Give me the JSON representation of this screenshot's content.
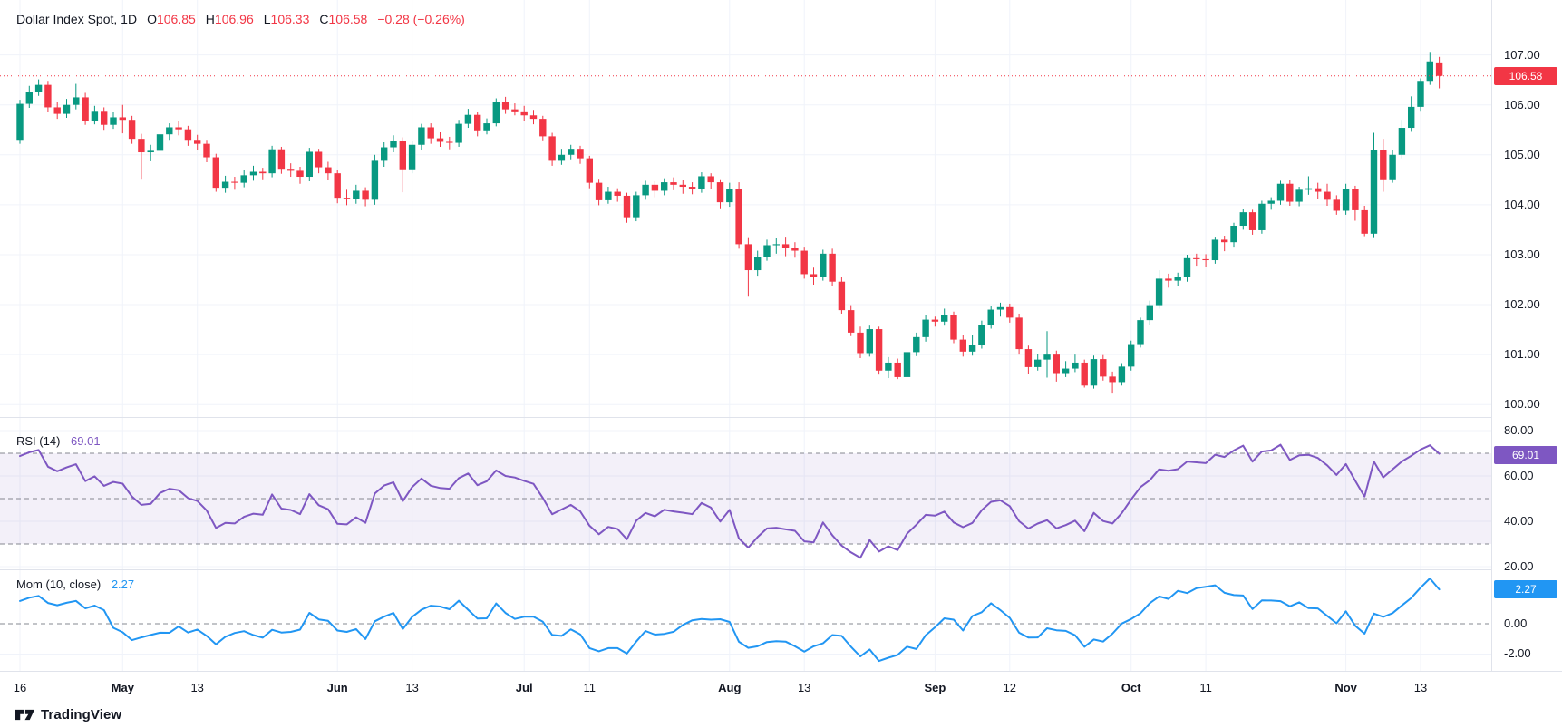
{
  "title": {
    "symbol": "Dollar Index Spot, 1D",
    "ohlc": [
      {
        "k": "O",
        "v": "106.85"
      },
      {
        "k": "H",
        "v": "106.96"
      },
      {
        "k": "L",
        "v": "106.33"
      },
      {
        "k": "C",
        "v": "106.58"
      }
    ],
    "change": "−0.28 (−0.26%)"
  },
  "footer": {
    "brand": "TradingView"
  },
  "colors": {
    "up": "#089981",
    "down": "#f23645",
    "grid": "#f0f3fa",
    "dashed": "#72747e",
    "separator": "#e0e3eb",
    "rsi_line": "#7e57c2",
    "rsi_band": "rgba(126,87,194,0.09)",
    "mom_line": "#2196f3",
    "last_price_line": "#f23645",
    "text": "#131722"
  },
  "chart_data": {
    "type": "candlestick",
    "symbol": "Dollar Index Spot",
    "interval": "1D",
    "legend_position": "top-left",
    "grid": true,
    "candles": [
      [
        105.3,
        106.1,
        105.22,
        106.02
      ],
      [
        106.02,
        106.38,
        105.94,
        106.26
      ],
      [
        106.26,
        106.51,
        106.18,
        106.4
      ],
      [
        106.4,
        106.48,
        105.86,
        105.95
      ],
      [
        105.95,
        106.06,
        105.72,
        105.82
      ],
      [
        105.82,
        106.12,
        105.74,
        106.0
      ],
      [
        106.0,
        106.42,
        105.91,
        106.15
      ],
      [
        106.15,
        106.24,
        105.6,
        105.68
      ],
      [
        105.68,
        105.98,
        105.61,
        105.88
      ],
      [
        105.88,
        105.95,
        105.5,
        105.6
      ],
      [
        105.6,
        105.86,
        105.52,
        105.75
      ],
      [
        105.75,
        106.0,
        105.43,
        105.7
      ],
      [
        105.7,
        105.78,
        105.22,
        105.32
      ],
      [
        105.32,
        105.42,
        104.52,
        105.05
      ],
      [
        105.05,
        105.2,
        104.87,
        105.08
      ],
      [
        105.08,
        105.5,
        104.97,
        105.41
      ],
      [
        105.41,
        105.63,
        105.3,
        105.55
      ],
      [
        105.55,
        105.68,
        105.39,
        105.51
      ],
      [
        105.51,
        105.58,
        105.18,
        105.3
      ],
      [
        105.3,
        105.4,
        105.1,
        105.22
      ],
      [
        105.22,
        105.3,
        104.85,
        104.95
      ],
      [
        104.95,
        105.02,
        104.26,
        104.34
      ],
      [
        104.34,
        104.58,
        104.24,
        104.46
      ],
      [
        104.46,
        104.56,
        104.3,
        104.44
      ],
      [
        104.44,
        104.7,
        104.35,
        104.59
      ],
      [
        104.59,
        104.78,
        104.48,
        104.66
      ],
      [
        104.66,
        104.74,
        104.51,
        104.63
      ],
      [
        104.63,
        105.18,
        104.55,
        105.11
      ],
      [
        105.11,
        105.16,
        104.62,
        104.72
      ],
      [
        104.72,
        104.83,
        104.56,
        104.68
      ],
      [
        104.68,
        104.76,
        104.42,
        104.56
      ],
      [
        104.56,
        105.14,
        104.47,
        105.06
      ],
      [
        105.06,
        105.12,
        104.63,
        104.75
      ],
      [
        104.75,
        104.86,
        104.5,
        104.63
      ],
      [
        104.63,
        104.69,
        104.03,
        104.14
      ],
      [
        104.14,
        104.3,
        103.99,
        104.12
      ],
      [
        104.12,
        104.4,
        104.02,
        104.28
      ],
      [
        104.28,
        104.35,
        103.97,
        104.1
      ],
      [
        104.1,
        105.0,
        104.0,
        104.88
      ],
      [
        104.88,
        105.25,
        104.76,
        105.15
      ],
      [
        105.15,
        105.39,
        105.05,
        105.27
      ],
      [
        105.27,
        105.35,
        104.25,
        104.71
      ],
      [
        104.71,
        105.28,
        104.63,
        105.2
      ],
      [
        105.2,
        105.62,
        105.1,
        105.55
      ],
      [
        105.55,
        105.63,
        105.22,
        105.33
      ],
      [
        105.33,
        105.45,
        105.16,
        105.26
      ],
      [
        105.26,
        105.36,
        105.11,
        105.24
      ],
      [
        105.24,
        105.7,
        105.16,
        105.62
      ],
      [
        105.62,
        105.92,
        105.54,
        105.8
      ],
      [
        105.8,
        105.86,
        105.37,
        105.49
      ],
      [
        105.49,
        105.73,
        105.41,
        105.63
      ],
      [
        105.63,
        106.13,
        105.57,
        106.05
      ],
      [
        106.05,
        106.16,
        105.82,
        105.91
      ],
      [
        105.91,
        106.03,
        105.79,
        105.87
      ],
      [
        105.87,
        105.98,
        105.68,
        105.79
      ],
      [
        105.79,
        105.9,
        105.61,
        105.72
      ],
      [
        105.72,
        105.78,
        105.29,
        105.37
      ],
      [
        105.37,
        105.44,
        104.78,
        104.88
      ],
      [
        104.88,
        105.12,
        104.8,
        105.0
      ],
      [
        105.0,
        105.2,
        104.91,
        105.12
      ],
      [
        105.12,
        105.18,
        104.82,
        104.93
      ],
      [
        104.93,
        104.98,
        104.33,
        104.44
      ],
      [
        104.44,
        104.52,
        103.99,
        104.09
      ],
      [
        104.09,
        104.36,
        104.02,
        104.26
      ],
      [
        104.26,
        104.33,
        104.06,
        104.18
      ],
      [
        104.18,
        104.24,
        103.64,
        103.75
      ],
      [
        103.75,
        104.26,
        103.67,
        104.19
      ],
      [
        104.19,
        104.48,
        104.1,
        104.4
      ],
      [
        104.4,
        104.47,
        104.15,
        104.28
      ],
      [
        104.28,
        104.53,
        104.19,
        104.45
      ],
      [
        104.45,
        104.55,
        104.29,
        104.4
      ],
      [
        104.4,
        104.49,
        104.22,
        104.36
      ],
      [
        104.36,
        104.45,
        104.21,
        104.32
      ],
      [
        104.32,
        104.65,
        104.24,
        104.57
      ],
      [
        104.57,
        104.63,
        104.31,
        104.45
      ],
      [
        104.45,
        104.51,
        103.93,
        104.05
      ],
      [
        104.05,
        104.44,
        103.96,
        104.31
      ],
      [
        104.31,
        104.45,
        103.12,
        103.21
      ],
      [
        103.21,
        103.35,
        102.16,
        102.69
      ],
      [
        102.69,
        103.08,
        102.58,
        102.96
      ],
      [
        102.96,
        103.3,
        102.88,
        103.19
      ],
      [
        103.19,
        103.33,
        103.02,
        103.21
      ],
      [
        103.21,
        103.36,
        102.97,
        103.14
      ],
      [
        103.14,
        103.25,
        102.94,
        103.08
      ],
      [
        103.08,
        103.16,
        102.52,
        102.61
      ],
      [
        102.61,
        102.74,
        102.4,
        102.56
      ],
      [
        102.56,
        103.1,
        102.48,
        103.02
      ],
      [
        103.02,
        103.12,
        102.37,
        102.46
      ],
      [
        102.46,
        102.55,
        101.82,
        101.89
      ],
      [
        101.89,
        101.99,
        101.37,
        101.44
      ],
      [
        101.44,
        101.56,
        100.93,
        101.03
      ],
      [
        101.03,
        101.58,
        100.96,
        101.51
      ],
      [
        101.51,
        101.56,
        100.6,
        100.68
      ],
      [
        100.68,
        100.95,
        100.53,
        100.84
      ],
      [
        100.84,
        100.92,
        100.51,
        100.55
      ],
      [
        100.55,
        101.12,
        100.52,
        101.05
      ],
      [
        101.05,
        101.44,
        100.97,
        101.35
      ],
      [
        101.35,
        101.79,
        101.26,
        101.7
      ],
      [
        101.7,
        101.76,
        101.56,
        101.66
      ],
      [
        101.66,
        101.92,
        101.58,
        101.8
      ],
      [
        101.8,
        101.86,
        101.23,
        101.3
      ],
      [
        101.3,
        101.4,
        100.96,
        101.06
      ],
      [
        101.06,
        101.4,
        100.98,
        101.19
      ],
      [
        101.19,
        101.68,
        101.12,
        101.6
      ],
      [
        101.6,
        101.98,
        101.52,
        101.9
      ],
      [
        101.9,
        102.04,
        101.76,
        101.95
      ],
      [
        101.95,
        102.02,
        101.64,
        101.74
      ],
      [
        101.74,
        101.82,
        101.0,
        101.11
      ],
      [
        101.11,
        101.18,
        100.62,
        100.75
      ],
      [
        100.75,
        101.02,
        100.68,
        100.9
      ],
      [
        100.9,
        101.47,
        100.54,
        101.0
      ],
      [
        101.0,
        101.08,
        100.46,
        100.63
      ],
      [
        100.63,
        100.87,
        100.55,
        100.72
      ],
      [
        100.72,
        101.0,
        100.65,
        100.84
      ],
      [
        100.84,
        100.9,
        100.34,
        100.38
      ],
      [
        100.38,
        100.98,
        100.32,
        100.91
      ],
      [
        100.91,
        100.99,
        100.48,
        100.56
      ],
      [
        100.56,
        100.66,
        100.22,
        100.45
      ],
      [
        100.45,
        100.83,
        100.38,
        100.76
      ],
      [
        100.76,
        101.28,
        100.68,
        101.21
      ],
      [
        101.21,
        101.74,
        101.14,
        101.69
      ],
      [
        101.69,
        102.08,
        101.6,
        101.99
      ],
      [
        101.99,
        102.69,
        101.92,
        102.52
      ],
      [
        102.52,
        102.62,
        102.34,
        102.48
      ],
      [
        102.48,
        102.64,
        102.37,
        102.55
      ],
      [
        102.55,
        103.0,
        102.46,
        102.93
      ],
      [
        102.93,
        103.02,
        102.78,
        102.91
      ],
      [
        102.91,
        103.01,
        102.76,
        102.89
      ],
      [
        102.89,
        103.36,
        102.82,
        103.3
      ],
      [
        103.3,
        103.38,
        103.07,
        103.25
      ],
      [
        103.25,
        103.64,
        103.16,
        103.58
      ],
      [
        103.58,
        103.92,
        103.5,
        103.85
      ],
      [
        103.85,
        103.9,
        103.4,
        103.49
      ],
      [
        103.49,
        104.08,
        103.42,
        104.02
      ],
      [
        104.02,
        104.15,
        103.9,
        104.08
      ],
      [
        104.08,
        104.48,
        104.0,
        104.42
      ],
      [
        104.42,
        104.5,
        103.98,
        104.06
      ],
      [
        104.06,
        104.36,
        103.97,
        104.3
      ],
      [
        104.3,
        104.57,
        104.2,
        104.33
      ],
      [
        104.33,
        104.44,
        104.12,
        104.26
      ],
      [
        104.26,
        104.42,
        103.98,
        104.1
      ],
      [
        104.1,
        104.19,
        103.8,
        103.88
      ],
      [
        103.88,
        104.42,
        103.8,
        104.31
      ],
      [
        104.31,
        104.38,
        103.68,
        103.89
      ],
      [
        103.89,
        103.98,
        103.37,
        103.42
      ],
      [
        103.42,
        105.44,
        103.35,
        105.09
      ],
      [
        105.09,
        105.32,
        104.26,
        104.51
      ],
      [
        104.51,
        105.09,
        104.44,
        105.0
      ],
      [
        105.0,
        105.7,
        104.93,
        105.54
      ],
      [
        105.54,
        106.17,
        105.46,
        105.96
      ],
      [
        105.96,
        106.53,
        105.88,
        106.48
      ],
      [
        106.48,
        107.06,
        106.4,
        106.87
      ],
      [
        106.85,
        106.96,
        106.33,
        106.58
      ]
    ],
    "x_axis": {
      "labels": [
        {
          "t": "16",
          "i": 0,
          "b": false
        },
        {
          "t": "May",
          "i": 11,
          "b": true
        },
        {
          "t": "13",
          "i": 19,
          "b": false
        },
        {
          "t": "Jun",
          "i": 34,
          "b": true
        },
        {
          "t": "13",
          "i": 42,
          "b": false
        },
        {
          "t": "Jul",
          "i": 54,
          "b": true
        },
        {
          "t": "11",
          "i": 61,
          "b": false
        },
        {
          "t": "Aug",
          "i": 76,
          "b": true
        },
        {
          "t": "13",
          "i": 84,
          "b": false
        },
        {
          "t": "Sep",
          "i": 98,
          "b": true
        },
        {
          "t": "12",
          "i": 106,
          "b": false
        },
        {
          "t": "Oct",
          "i": 119,
          "b": true
        },
        {
          "t": "11",
          "i": 127,
          "b": false
        },
        {
          "t": "Nov",
          "i": 142,
          "b": true
        },
        {
          "t": "13",
          "i": 150,
          "b": false
        }
      ]
    },
    "main_pane": {
      "ylim": [
        99.75,
        108.1
      ],
      "gridlines": [
        100,
        101,
        102,
        103,
        104,
        105,
        106,
        107
      ],
      "axis_labels": [
        {
          "t": "107.00",
          "v": 107
        },
        {
          "t": "106.00",
          "v": 106
        },
        {
          "t": "105.00",
          "v": 105
        },
        {
          "t": "104.00",
          "v": 104
        },
        {
          "t": "103.00",
          "v": 103
        },
        {
          "t": "102.00",
          "v": 102
        },
        {
          "t": "101.00",
          "v": 101
        },
        {
          "t": "100.00",
          "v": 100
        }
      ],
      "last_price": {
        "value": 106.58,
        "label": "106.58"
      }
    },
    "rsi_pane": {
      "title": "RSI (14)",
      "period": 14,
      "value": 69.01,
      "label": "69.01",
      "ylim": [
        18.8,
        86
      ],
      "grid": [
        80,
        60,
        40,
        20
      ],
      "dashed_levels": [
        70,
        50,
        30
      ],
      "band": [
        30,
        70
      ],
      "seed": {
        "avg_gain": 0.22,
        "avg_loss": 0.1
      },
      "axis_labels": [
        {
          "t": "80.00",
          "v": 80
        },
        {
          "t": "60.00",
          "v": 60
        },
        {
          "t": "40.00",
          "v": 40
        },
        {
          "t": "20.00",
          "v": 20
        }
      ]
    },
    "mom_pane": {
      "title": "Mom (10, close)",
      "period": 10,
      "value": 2.27,
      "label": "2.27",
      "ylim": [
        -3.11,
        3.59
      ],
      "solid_grid": [
        -2
      ],
      "dashed_levels": [
        0
      ],
      "pre_baseline": {
        "start_offset": 1.5,
        "step": 0.02
      },
      "axis_labels": [
        {
          "t": "0.00",
          "v": 0
        },
        {
          "t": "-2.00",
          "v": -2
        }
      ]
    }
  }
}
